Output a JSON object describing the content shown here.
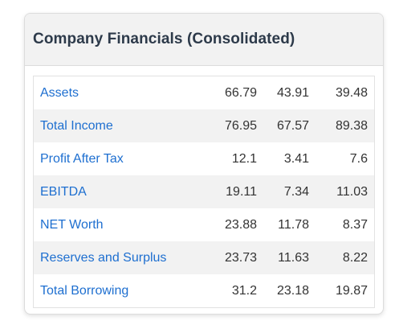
{
  "card": {
    "title": "Company Financials (Consolidated)"
  },
  "financials": {
    "rows": [
      {
        "label": "Assets",
        "values": [
          "66.79",
          "43.91",
          "39.48"
        ]
      },
      {
        "label": "Total Income",
        "values": [
          "76.95",
          "67.57",
          "89.38"
        ]
      },
      {
        "label": "Profit After Tax",
        "values": [
          "12.1",
          "3.41",
          "7.6"
        ]
      },
      {
        "label": "EBITDA",
        "values": [
          "19.11",
          "7.34",
          "11.03"
        ]
      },
      {
        "label": "NET Worth",
        "values": [
          "23.88",
          "11.78",
          "8.37"
        ]
      },
      {
        "label": "Reserves and Surplus",
        "values": [
          "23.73",
          "11.63",
          "8.22"
        ]
      },
      {
        "label": "Total Borrowing",
        "values": [
          "31.2",
          "23.18",
          "19.87"
        ]
      }
    ]
  },
  "colors": {
    "link": "#1e6fd0",
    "title": "#2d3a4a",
    "header_bg": "#f2f2f2",
    "stripe_bg": "#f2f2f2"
  }
}
